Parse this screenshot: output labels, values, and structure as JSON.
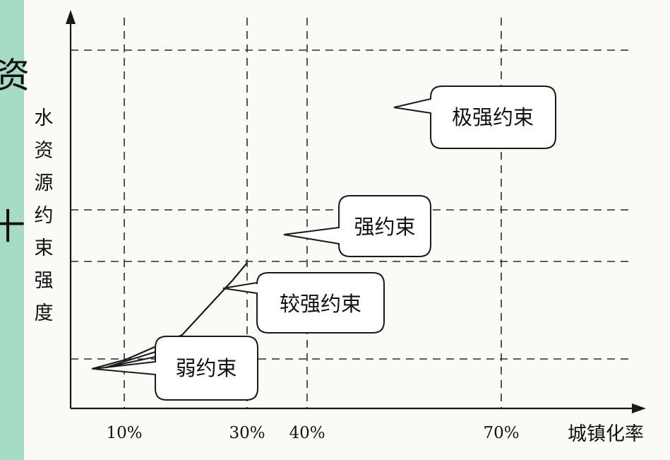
{
  "y_axis_title_chars": [
    "水",
    "资",
    "源",
    "约",
    "束",
    "强",
    "度"
  ],
  "x_axis_title": "城镇化率",
  "x_ticks": [
    "10%",
    "30%",
    "40%",
    "70%"
  ],
  "zones": {
    "weak": "弱约束",
    "fairly_strong": "较强约束",
    "strong": "强约束",
    "extreme": "极强约束"
  },
  "left_edge_glyphs": [
    "资",
    "十"
  ]
}
